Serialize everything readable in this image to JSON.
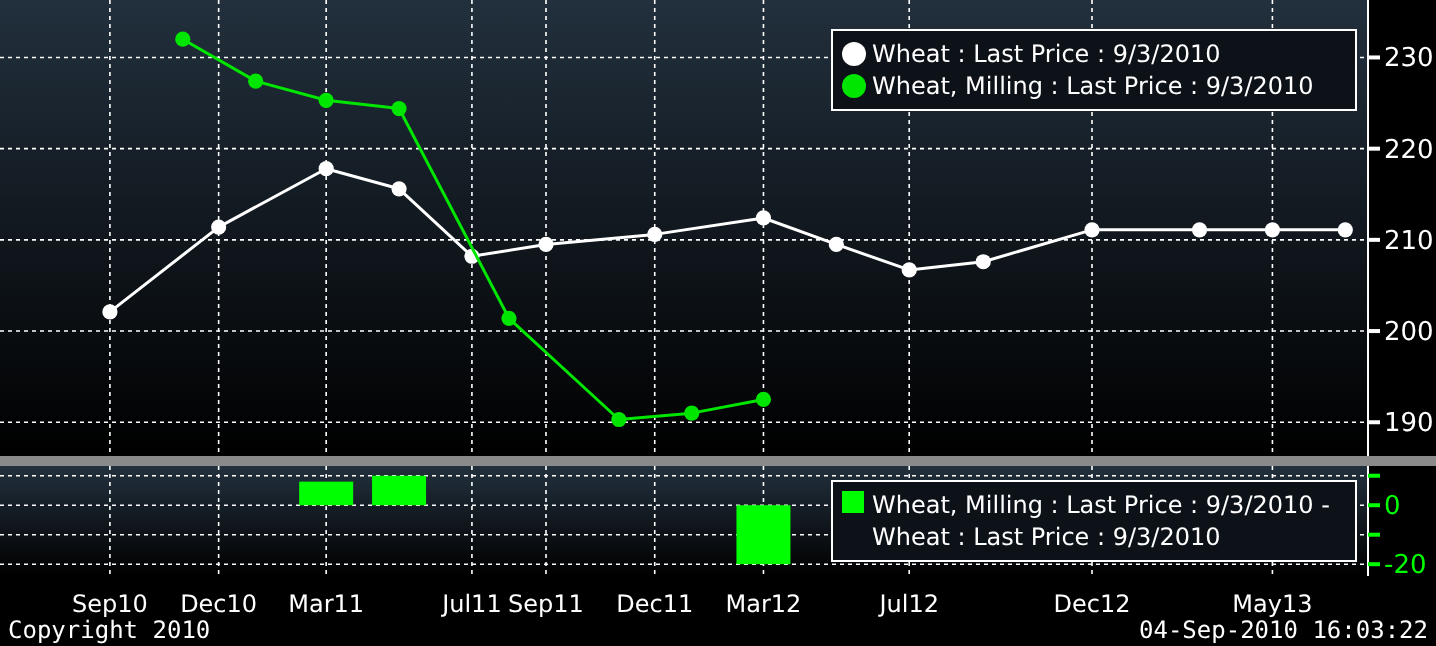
{
  "chart_data": [
    {
      "type": "line",
      "x": [
        "2010-09",
        "2010-12",
        "2011-03",
        "2011-05",
        "2011-07",
        "2011-09",
        "2011-12",
        "2012-03",
        "2012-05",
        "2012-07",
        "2012-09",
        "2012-12",
        "2013-03",
        "2013-05",
        "2013-07"
      ],
      "series": [
        {
          "name": "Wheat : Last Price : 9/3/2010",
          "color": "#ffffff",
          "values": [
            202.1,
            211.4,
            217.8,
            215.6,
            208.2,
            209.5,
            210.6,
            212.4,
            209.5,
            206.7,
            207.6,
            211.1,
            211.1,
            211.1,
            211.1
          ]
        },
        {
          "name": "Wheat, Milling : Last Price : 9/3/2010",
          "color": "#00e600",
          "x": [
            "2010-11",
            "2011-01",
            "2011-03",
            "2011-05",
            "2011-08",
            "2011-11",
            "2012-01",
            "2012-03"
          ],
          "values": [
            232,
            227.4,
            225.3,
            224.4,
            201.4,
            190.3,
            191,
            192.5
          ]
        }
      ],
      "xlim": [
        "2010-06-01",
        "2013-07-20"
      ],
      "ylim": [
        186.3,
        236.3
      ],
      "yticks": [
        190,
        200,
        210,
        220,
        230
      ],
      "xticks": [
        {
          "value": "2010-09",
          "label": null
        },
        {
          "value": "2010-12",
          "label": null
        },
        {
          "value": "2011-03",
          "label": null
        },
        {
          "value": "2011-07",
          "label": null
        },
        {
          "value": "2011-09",
          "label": null
        },
        {
          "value": "2011-12",
          "label": null
        },
        {
          "value": "2012-03",
          "label": null
        },
        {
          "value": "2012-07",
          "label": null
        },
        {
          "value": "2012-12",
          "label": null
        },
        {
          "value": "2013-05",
          "label": null
        }
      ],
      "tick_labels": "y",
      "grid": true,
      "legend": "top right",
      "marker": "circle",
      "line_style": "solid"
    },
    {
      "type": "bar",
      "x": [
        "2011-03",
        "2011-05",
        "2012-03"
      ],
      "series": [
        {
          "name": "Wheat, Milling : Last Price : 9/3/2010 - Wheat : Last Price : 9/3/2010",
          "color": "#00ff00",
          "values": [
            8,
            10,
            -20
          ]
        }
      ],
      "xlim": [
        "2010-06-01",
        "2013-07-20"
      ],
      "ylim": [
        -24,
        13.3
      ],
      "yticks": [
        {
          "value": 10,
          "label": null
        },
        0,
        {
          "value": -10,
          "label": null
        },
        -20
      ],
      "xticks": [
        {
          "value": "2010-09",
          "label": "Sep10"
        },
        {
          "value": "2010-12",
          "label": "Dec10"
        },
        {
          "value": "2011-03",
          "label": "Mar11"
        },
        {
          "value": "2011-07",
          "label": "Jul11"
        },
        {
          "value": "2011-09",
          "label": "Sep11"
        },
        {
          "value": "2011-12",
          "label": "Dec11"
        },
        {
          "value": "2012-03",
          "label": "Mar12"
        },
        {
          "value": "2012-07",
          "label": "Jul12"
        },
        {
          "value": "2012-12",
          "label": "Dec12"
        },
        {
          "value": "2013-05",
          "label": "May13"
        }
      ],
      "grid": true,
      "legend": "right",
      "annotations": [
        "Copyright 2010",
        "04-Sep-2010 16:03:22"
      ]
    }
  ]
}
